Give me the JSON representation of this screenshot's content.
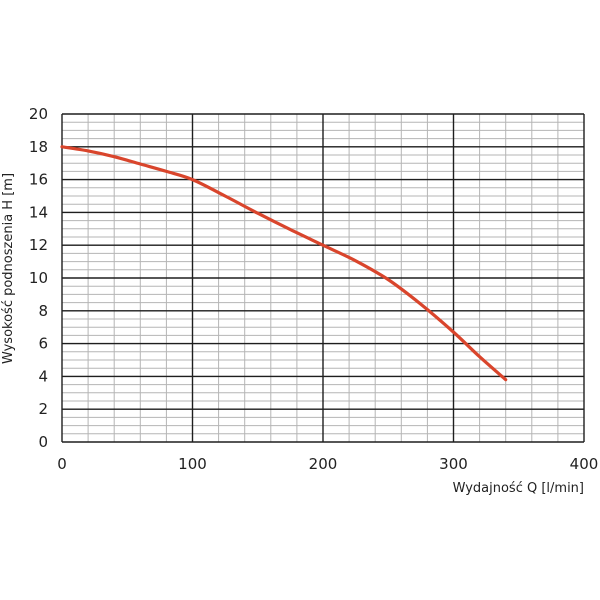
{
  "chart_data": {
    "type": "line",
    "xlabel": "Wydajność Q [l/min]",
    "ylabel": "Wysokość podnoszenia H [m]",
    "xlim": [
      0,
      400
    ],
    "ylim": [
      0,
      20
    ],
    "x_ticks": [
      0,
      100,
      200,
      300,
      400
    ],
    "y_ticks": [
      0,
      2,
      4,
      6,
      8,
      10,
      12,
      14,
      16,
      18,
      20
    ],
    "x_tick_labels": [
      "0",
      "100",
      "200",
      "300",
      "400"
    ],
    "y_tick_labels": [
      "0",
      "2",
      "4",
      "6",
      "8",
      "10",
      "12",
      "14",
      "16",
      "18",
      "20"
    ],
    "grid": true,
    "minor_grid": {
      "x_step": 20,
      "y_step": 0.5
    },
    "series": [
      {
        "color": "#d9452c",
        "x": [
          0,
          20,
          40,
          60,
          80,
          100,
          125,
          150,
          175,
          200,
          225,
          250,
          275,
          300,
          320,
          340
        ],
        "y": [
          18,
          17.75,
          17.4,
          16.95,
          16.5,
          16,
          15,
          13.95,
          12.95,
          12,
          11.05,
          9.9,
          8.4,
          6.7,
          5.2,
          3.8
        ]
      }
    ]
  }
}
